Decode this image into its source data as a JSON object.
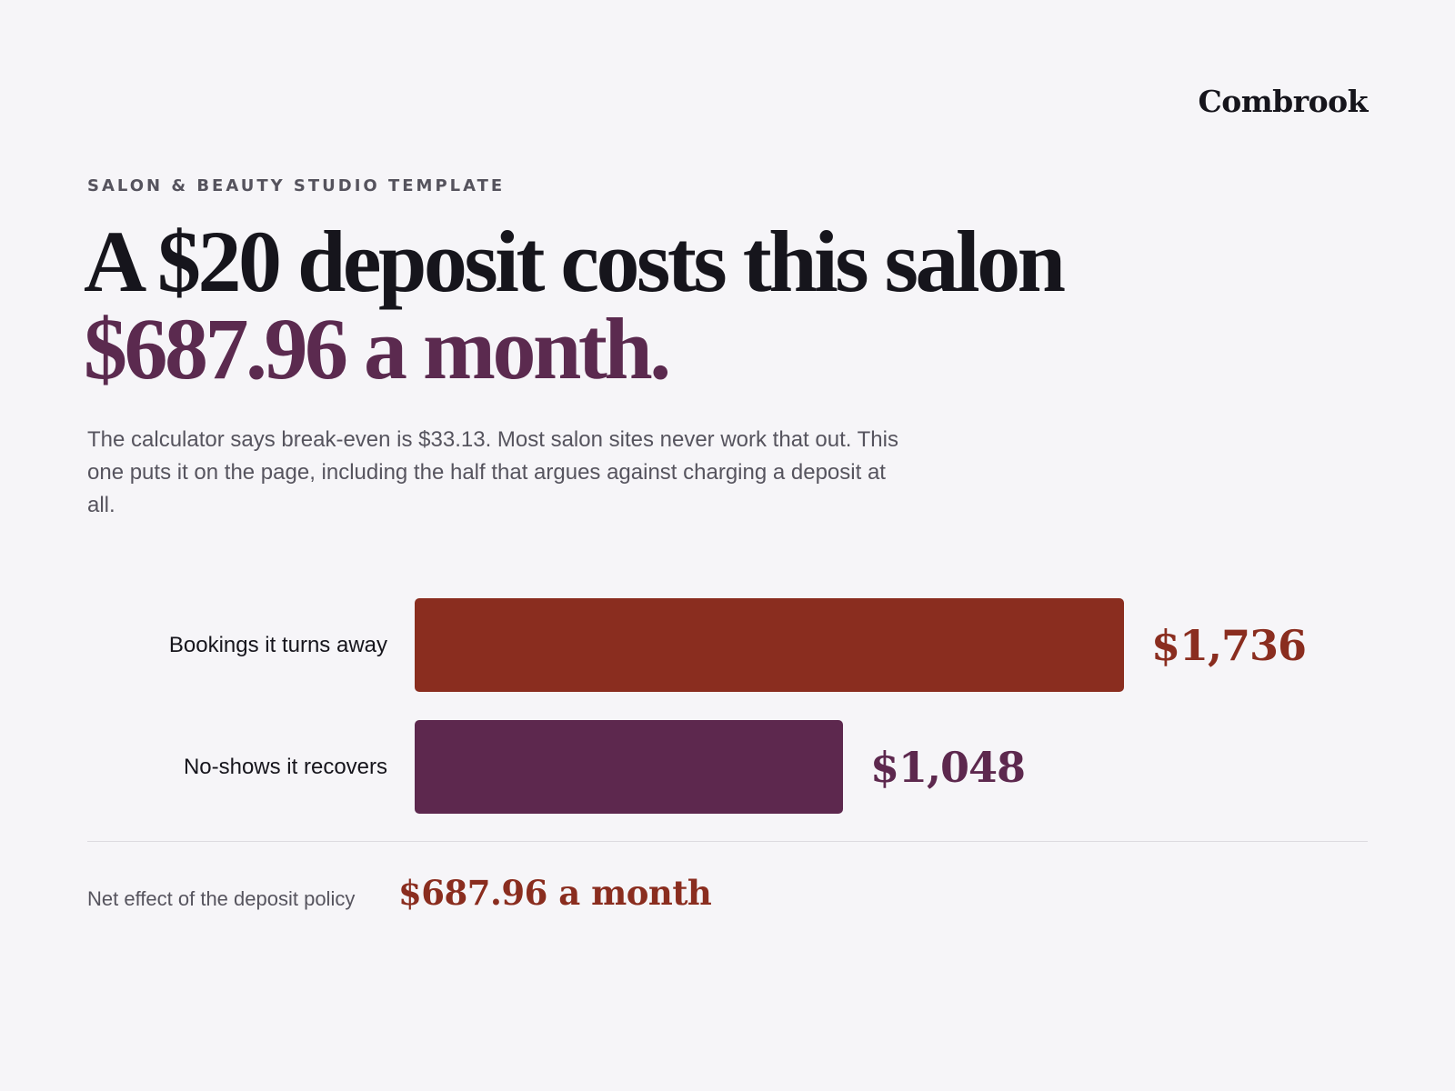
{
  "brand": {
    "name": "Combrook"
  },
  "eyebrow": "SALON & BEAUTY STUDIO TEMPLATE",
  "headline": {
    "line1": "A $20 deposit costs this salon",
    "line2": "$687.96 a month."
  },
  "lede": "The calculator says break-even is $33.13. Most salon sites never work that out. This one puts it on the page, including the half that argues against charging a deposit at all.",
  "colors": {
    "accent_plum": "#5b2a4f",
    "accent_rust": "#8a2d1f",
    "bar_turned_away": "#8a2d1f",
    "bar_recovered": "#5d284e"
  },
  "chart_data": {
    "type": "bar",
    "orientation": "horizontal",
    "categories": [
      "Bookings it turns away",
      "No-shows it recovers"
    ],
    "values": [
      1736,
      1048
    ],
    "value_labels": [
      "$1,736",
      "$1,048"
    ],
    "colors": [
      "#8a2d1f",
      "#5d284e"
    ],
    "grid": false
  },
  "summary": {
    "label": "Net effect of the deposit policy",
    "value": "$687.96 a month"
  }
}
